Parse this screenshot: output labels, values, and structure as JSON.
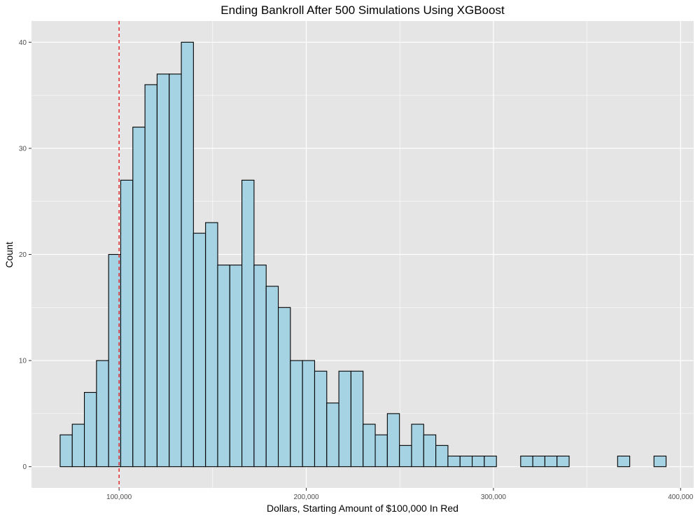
{
  "chart_data": {
    "type": "bar",
    "title": "Ending Bankroll After 500 Simulations Using XGBoost",
    "xlabel": "Dollars, Starting Amount of $100,000 In Red",
    "ylabel": "Count",
    "xlim": [
      53200,
      407000
    ],
    "ylim": [
      -2,
      42
    ],
    "x_ticks": [
      {
        "value": 100000,
        "label": "100,000"
      },
      {
        "value": 200000,
        "label": "200,000"
      },
      {
        "value": 300000,
        "label": "300,000"
      },
      {
        "value": 400000,
        "label": "400,000"
      }
    ],
    "y_ticks": [
      {
        "value": 0,
        "label": "0"
      },
      {
        "value": 10,
        "label": "10"
      },
      {
        "value": 20,
        "label": "20"
      },
      {
        "value": 30,
        "label": "30"
      },
      {
        "value": 40,
        "label": "40"
      }
    ],
    "bin_start": 68500,
    "bin_width": 6475,
    "counts": [
      3,
      4,
      7,
      10,
      20,
      27,
      32,
      36,
      37,
      37,
      40,
      22,
      23,
      19,
      19,
      27,
      19,
      17,
      15,
      10,
      10,
      9,
      6,
      9,
      9,
      4,
      3,
      5,
      2,
      4,
      3,
      2,
      1,
      1,
      1,
      1,
      0,
      0,
      1,
      1,
      1,
      1,
      0,
      0,
      0,
      0,
      1,
      0,
      0,
      1
    ],
    "reference_line": {
      "value": 100000,
      "color": "#e41a1c",
      "style": "dashed"
    },
    "colors": {
      "panel_background": "#e5e5e5",
      "grid": "#ffffff",
      "bar_fill": "#a6d3e3",
      "bar_outline": "#000000"
    },
    "grid": true,
    "legend": "none"
  }
}
